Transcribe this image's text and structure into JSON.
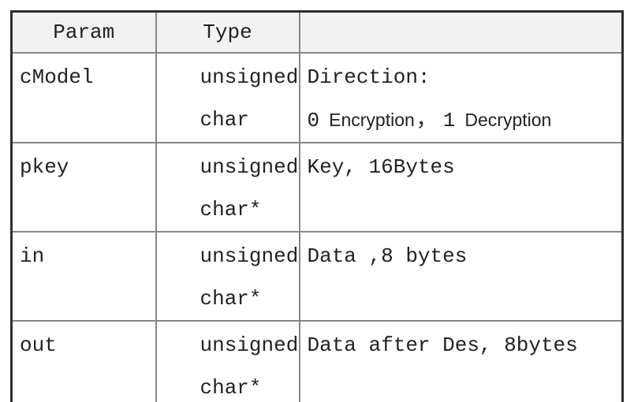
{
  "table": {
    "header": {
      "param": "Param",
      "type": "Type",
      "desc": ""
    },
    "rows": [
      {
        "param": "cModel",
        "type1": "unsigned",
        "type2": "char",
        "desc1": "Direction:",
        "desc2": {
          "v0": "0",
          "enc": "Encryption",
          "comma": "，",
          "v1": "1",
          "dec": "Decryption"
        }
      },
      {
        "param": "pkey",
        "type1": "unsigned",
        "type2": "char*",
        "desc1": "Key, 16Bytes"
      },
      {
        "param": "in",
        "type1": "unsigned",
        "type2": "char*",
        "desc1": "Data ,8 bytes"
      },
      {
        "param": "out",
        "type1": "unsigned",
        "type2": "char*",
        "desc1": "Data after Des, 8bytes"
      }
    ],
    "colors": {
      "header_bg": "#f2f2f2",
      "outer_border": "#2e2e2e",
      "inner_border": "#878787",
      "text": "#222226",
      "background": "#ffffff"
    }
  }
}
